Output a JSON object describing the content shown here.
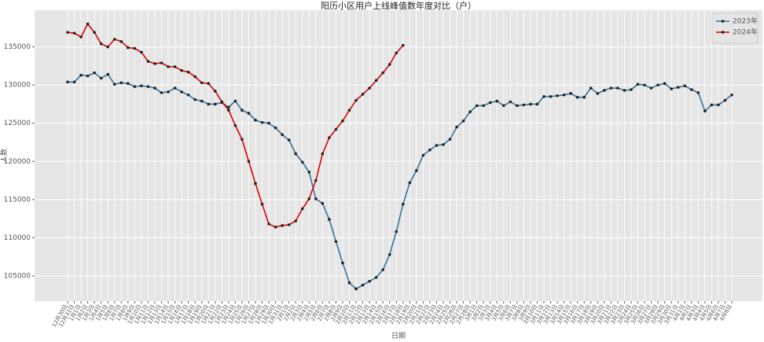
{
  "chart_data": {
    "type": "line",
    "title": "阳历小区用户上线峰值数年度对比（户）",
    "x_label": "日期",
    "y_label": "人数",
    "categories": [
      "12月30日",
      "12月31日",
      "1月1日",
      "1月2日",
      "1月3日",
      "1月4日",
      "1月5日",
      "1月6日",
      "1月7日",
      "1月8日",
      "1月9日",
      "1月10日",
      "1月11日",
      "1月12日",
      "1月13日",
      "1月14日",
      "1月15日",
      "1月16日",
      "1月17日",
      "1月18日",
      "1月19日",
      "1月20日",
      "1月21日",
      "1月22日",
      "1月23日",
      "1月24日",
      "1月25日",
      "1月26日",
      "1月27日",
      "1月28日",
      "1月29日",
      "1月30日",
      "1月31日",
      "2月1日",
      "2月2日",
      "2月3日",
      "2月4日",
      "2月5日",
      "2月6日",
      "2月7日",
      "2月8日",
      "2月9日",
      "2月10日",
      "2月11日",
      "2月12日",
      "2月13日",
      "2月14日",
      "2月15日",
      "2月16日",
      "2月17日",
      "2月18日",
      "2月19日",
      "2月20日",
      "2月21日",
      "2月22日",
      "2月23日",
      "2月24日",
      "2月25日",
      "2月26日",
      "2月27日",
      "2月28日",
      "3月1日",
      "3月2日",
      "3月3日",
      "3月4日",
      "3月5日",
      "3月6日",
      "3月7日",
      "3月8日",
      "3月9日",
      "3月10日",
      "3月11日",
      "3月12日",
      "3月13日",
      "3月14日",
      "3月15日",
      "3月16日",
      "3月17日",
      "3月18日",
      "3月19日",
      "3月20日",
      "3月21日",
      "3月22日",
      "3月23日",
      "3月24日",
      "3月25日",
      "3月26日",
      "3月27日",
      "3月28日",
      "3月29日",
      "3月30日",
      "3月31日",
      "4月1日",
      "4月2日",
      "4月3日",
      "4月4日",
      "4月5日",
      "4月6日",
      "4月7日",
      "4月8日"
    ],
    "series": [
      {
        "name": "2023年",
        "color": "#33739f",
        "values": [
          130400,
          130400,
          131300,
          131200,
          131600,
          130900,
          131400,
          130100,
          130300,
          130200,
          129800,
          129900,
          129800,
          129600,
          129000,
          129100,
          129600,
          129100,
          128700,
          128100,
          127900,
          127500,
          127500,
          127700,
          127100,
          127900,
          126700,
          126300,
          125400,
          125100,
          125000,
          124400,
          123500,
          122800,
          121000,
          119900,
          118600,
          115100,
          114500,
          112400,
          109500,
          106700,
          104100,
          103300,
          103800,
          104300,
          104800,
          105800,
          107800,
          110800,
          114400,
          117200,
          118800,
          120800,
          121500,
          122100,
          122200,
          122900,
          124500,
          125300,
          126500,
          127300,
          127300,
          127700,
          127900,
          127300,
          127800,
          127300,
          127400,
          127500,
          127500,
          128500,
          128500,
          128600,
          128700,
          128900,
          128400,
          128400,
          129600,
          128900,
          129300,
          129600,
          129600,
          129300,
          129400,
          130100,
          130000,
          129600,
          130000,
          130200,
          129500,
          129700,
          129900,
          129400,
          129000,
          126600,
          127400,
          127400,
          128000,
          128700
        ]
      },
      {
        "name": "2024年",
        "color": "#e00000",
        "values": [
          136900,
          136800,
          136300,
          138000,
          136900,
          135400,
          135000,
          136000,
          135700,
          134900,
          134800,
          134300,
          133100,
          132800,
          132900,
          132400,
          132400,
          131900,
          131700,
          131100,
          130300,
          130200,
          129200,
          127800,
          126700,
          124700,
          122900,
          120000,
          117100,
          114400,
          111800,
          111400,
          111600,
          111700,
          112200,
          113800,
          115100,
          117500,
          121000,
          123100,
          124200,
          125300,
          126700,
          128000,
          128800,
          129600,
          130600,
          131600,
          132700,
          134200,
          135200,
          null,
          null,
          null,
          null,
          null,
          null,
          null,
          null,
          null,
          null,
          null,
          null,
          null,
          null,
          null,
          null,
          null,
          null,
          null,
          null,
          null,
          null,
          null,
          null,
          null,
          null,
          null,
          null,
          null,
          null,
          null,
          null,
          null,
          null,
          null,
          null,
          null,
          null,
          null,
          null,
          null,
          null,
          null,
          null,
          null,
          null,
          null,
          null,
          null
        ]
      }
    ],
    "ylim": [
      101700,
      139800
    ],
    "yticks": [
      105000,
      110000,
      115000,
      120000,
      125000,
      130000,
      135000
    ],
    "grid": true,
    "legend": "upper right"
  }
}
